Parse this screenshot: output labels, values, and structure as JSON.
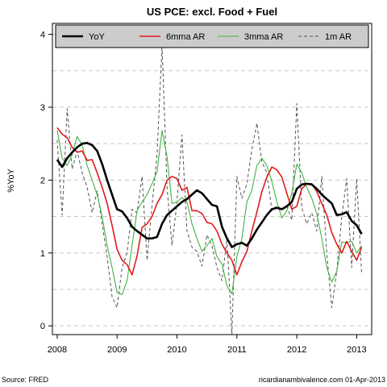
{
  "chart_data": {
    "type": "line",
    "title": "US PCE: excl. Food + Fuel",
    "xlabel": "",
    "ylabel": "%YoY",
    "xlim": [
      2007.92,
      2013.25
    ],
    "ylim": [
      -0.12,
      4.15
    ],
    "x_ticks": [
      2008,
      2009,
      2010,
      2011,
      2012,
      2013
    ],
    "x_tick_labels": [
      "2008",
      "2009",
      "2010",
      "2011",
      "2012",
      "2013"
    ],
    "y_ticks": [
      0,
      1,
      2,
      3,
      4
    ],
    "y_tick_labels": [
      "0",
      "1",
      "2",
      "3",
      "4"
    ],
    "grid": "horizontal dashed",
    "legend_position": "top",
    "x_start": 2008.0,
    "x_step_months": 1,
    "series": [
      {
        "name": "YoY",
        "color": "#000000",
        "dash": "solid",
        "width": 2.6,
        "values": [
          2.28,
          2.18,
          2.3,
          2.38,
          2.45,
          2.5,
          2.51,
          2.48,
          2.4,
          2.22,
          2.0,
          1.8,
          1.6,
          1.57,
          1.48,
          1.36,
          1.3,
          1.25,
          1.2,
          1.2,
          1.22,
          1.4,
          1.52,
          1.58,
          1.64,
          1.7,
          1.74,
          1.8,
          1.86,
          1.82,
          1.74,
          1.66,
          1.64,
          1.36,
          1.2,
          1.08,
          1.12,
          1.14,
          1.1,
          1.2,
          1.32,
          1.42,
          1.52,
          1.6,
          1.62,
          1.6,
          1.64,
          1.7,
          1.88,
          1.94,
          1.95,
          1.94,
          1.88,
          1.8,
          1.74,
          1.68,
          1.52,
          1.53,
          1.56,
          1.44,
          1.38,
          1.26
        ]
      },
      {
        "name": "6mma AR",
        "color": "#e31a1c",
        "dash": "solid",
        "width": 1.6,
        "values": [
          2.72,
          2.63,
          2.58,
          2.45,
          2.38,
          2.4,
          2.27,
          2.28,
          2.1,
          1.9,
          1.68,
          1.38,
          1.05,
          0.9,
          0.84,
          0.7,
          0.96,
          1.35,
          1.4,
          1.5,
          1.68,
          1.8,
          2.0,
          2.05,
          2.02,
          1.86,
          1.9,
          1.58,
          1.58,
          1.54,
          1.42,
          1.4,
          1.3,
          1.12,
          1.0,
          0.9,
          0.7,
          0.88,
          1.02,
          1.3,
          1.56,
          1.84,
          2.04,
          2.18,
          2.14,
          2.04,
          1.82,
          1.6,
          1.64,
          1.88,
          1.95,
          1.95,
          1.84,
          1.68,
          1.52,
          1.28,
          1.12,
          1.0,
          1.16,
          1.02,
          0.9,
          1.08
        ]
      },
      {
        "name": "3mma AR",
        "color": "#41b341",
        "dash": "solid",
        "width": 1.1,
        "values": [
          2.68,
          2.3,
          2.2,
          2.35,
          2.6,
          2.48,
          2.2,
          2.0,
          1.8,
          1.5,
          1.1,
          0.8,
          0.46,
          0.43,
          0.62,
          1.1,
          1.58,
          1.7,
          1.8,
          1.95,
          2.12,
          2.68,
          2.32,
          1.68,
          1.7,
          1.76,
          1.7,
          1.4,
          1.2,
          1.02,
          1.1,
          1.2,
          0.95,
          0.85,
          0.55,
          0.44,
          0.95,
          1.2,
          1.7,
          1.86,
          2.2,
          2.3,
          2.2,
          1.98,
          1.7,
          1.48,
          1.58,
          1.82,
          2.22,
          2.1,
          1.9,
          1.75,
          1.54,
          1.2,
          0.8,
          0.6,
          0.75,
          1.15,
          1.14,
          1.16,
          1.0,
          1.1
        ]
      },
      {
        "name": "1m AR",
        "color": "#555555",
        "dash": "dashed",
        "width": 1.0,
        "values": [
          2.55,
          1.52,
          2.98,
          2.15,
          2.4,
          2.1,
          1.9,
          1.55,
          1.85,
          1.4,
          0.95,
          0.4,
          0.25,
          0.8,
          1.0,
          1.6,
          1.55,
          2.05,
          0.9,
          1.65,
          2.35,
          3.85,
          1.9,
          1.1,
          1.7,
          2.62,
          1.3,
          1.08,
          1.02,
          0.82,
          1.25,
          1.1,
          0.8,
          0.62,
          1.2,
          -0.12,
          2.05,
          1.75,
          1.95,
          2.42,
          2.78,
          2.25,
          2.1,
          1.58,
          1.65,
          1.6,
          1.65,
          1.45,
          3.05,
          1.62,
          1.4,
          1.55,
          1.3,
          2.05,
          1.0,
          0.25,
          0.75,
          1.5,
          2.02,
          0.8,
          2.02,
          0.7
        ]
      }
    ]
  },
  "legend": {
    "items": [
      {
        "label": "YoY",
        "color": "#000000"
      },
      {
        "label": "6mma AR",
        "color": "#e31a1c"
      },
      {
        "label": "3mma AR",
        "color": "#41b341"
      },
      {
        "label": "1m AR",
        "color": "#555555"
      }
    ]
  },
  "footer": {
    "source": "Source: FRED",
    "credit": "ricardianambivalence.com   01-Apr-2013"
  }
}
